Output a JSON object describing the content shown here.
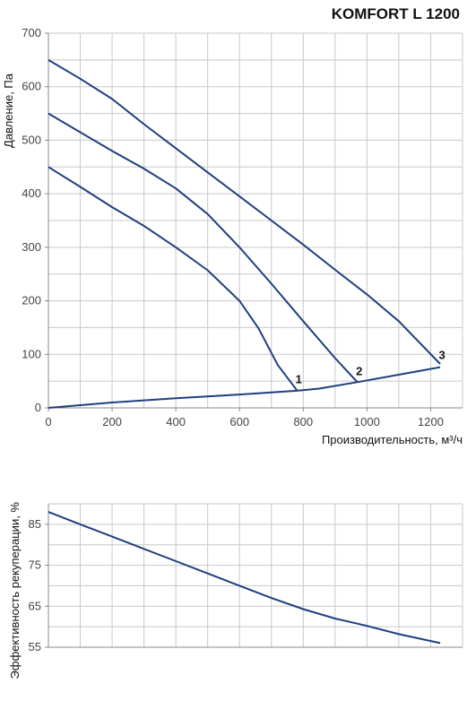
{
  "title": "KOMFORT L 1200",
  "colors": {
    "line": "#1f3f7f",
    "grid": "#c8c8c8",
    "axis": "#888888"
  },
  "chart_data": [
    {
      "type": "line",
      "title": "KOMFORT L 1200",
      "xlabel": "Производительность, м³/ч",
      "ylabel": "Давление, Па",
      "xlim": [
        0,
        1300
      ],
      "ylim": [
        0,
        700
      ],
      "xticks": [
        0,
        200,
        400,
        600,
        800,
        1000,
        1200
      ],
      "yticks": [
        0,
        100,
        200,
        300,
        400,
        500,
        600,
        700
      ],
      "grid": true,
      "series": [
        {
          "points": [
            [
              0,
              650
            ],
            [
              100,
              615
            ],
            [
              200,
              577
            ],
            [
              300,
              530
            ],
            [
              400,
              485
            ],
            [
              500,
              440
            ],
            [
              600,
              395
            ],
            [
              700,
              350
            ],
            [
              800,
              305
            ],
            [
              900,
              258
            ],
            [
              1000,
              212
            ],
            [
              1100,
              162
            ],
            [
              1230,
              82
            ]
          ]
        },
        {
          "points": [
            [
              0,
              550
            ],
            [
              100,
              515
            ],
            [
              200,
              480
            ],
            [
              300,
              447
            ],
            [
              400,
              410
            ],
            [
              500,
              362
            ],
            [
              600,
              300
            ],
            [
              700,
              232
            ],
            [
              800,
              162
            ],
            [
              900,
              93
            ],
            [
              970,
              48
            ]
          ]
        },
        {
          "points": [
            [
              0,
              450
            ],
            [
              100,
              413
            ],
            [
              200,
              375
            ],
            [
              300,
              340
            ],
            [
              400,
              300
            ],
            [
              500,
              257
            ],
            [
              600,
              200
            ],
            [
              660,
              148
            ],
            [
              720,
              80
            ],
            [
              780,
              33
            ]
          ]
        },
        {
          "points": [
            [
              0,
              0
            ],
            [
              200,
              10
            ],
            [
              400,
              18
            ],
            [
              600,
              25
            ],
            [
              780,
              32
            ],
            [
              850,
              36
            ],
            [
              970,
              48
            ],
            [
              1100,
              62
            ],
            [
              1230,
              76
            ]
          ]
        }
      ],
      "annotations": [
        {
          "text": "1",
          "x": 780,
          "y": 33
        },
        {
          "text": "2",
          "x": 970,
          "y": 48
        },
        {
          "text": "3",
          "x": 1230,
          "y": 78
        }
      ]
    },
    {
      "type": "line",
      "ylabel": "Эффективность рекуперации, %",
      "xlim": [
        0,
        1300
      ],
      "ylim": [
        55,
        90
      ],
      "yticks": [
        55,
        65,
        75,
        85
      ],
      "grid": true,
      "series": [
        {
          "points": [
            [
              0,
              88
            ],
            [
              100,
              85
            ],
            [
              200,
              82
            ],
            [
              300,
              79
            ],
            [
              400,
              76
            ],
            [
              500,
              73
            ],
            [
              600,
              70
            ],
            [
              700,
              67
            ],
            [
              800,
              64.3
            ],
            [
              900,
              62
            ],
            [
              1000,
              60.2
            ],
            [
              1100,
              58.2
            ],
            [
              1230,
              56
            ]
          ]
        }
      ]
    }
  ]
}
